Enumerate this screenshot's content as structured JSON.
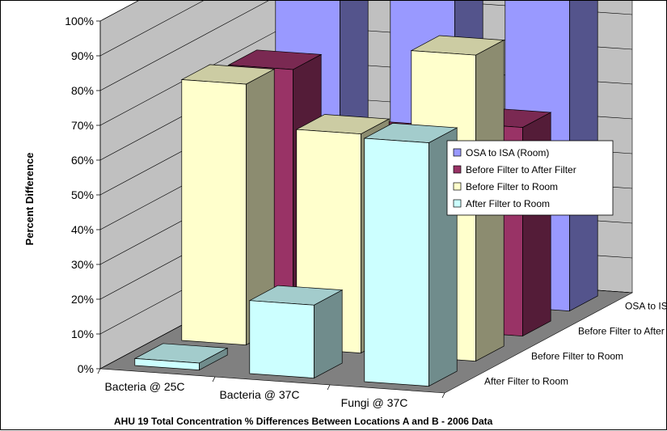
{
  "chart_data": {
    "type": "bar",
    "style": "3d-clustered-columns",
    "title": "AHU 19 Total Concentration % Differences Between Locations A and B - 2006 Data",
    "ylabel": "Percent Difference",
    "ylim": [
      0,
      100
    ],
    "y_ticks": [
      "0%",
      "10%",
      "20%",
      "30%",
      "40%",
      "50%",
      "60%",
      "70%",
      "80%",
      "90%",
      "100%"
    ],
    "categories": [
      "Bacteria @ 25C",
      "Bacteria @ 37C",
      "Fungi @ 37C"
    ],
    "series": [
      {
        "name": "OSA to ISA (Room)",
        "values": [
          95,
          95,
          98
        ],
        "color": "#9999ff"
      },
      {
        "name": "Before Filter to After Filter",
        "values": [
          72,
          54,
          60
        ],
        "color": "#993366"
      },
      {
        "name": "Before Filter to Room",
        "values": [
          75,
          63,
          88
        ],
        "color": "#ffffcc"
      },
      {
        "name": "After Filter to Room",
        "values": [
          2,
          21,
          70
        ],
        "color": "#ccffff"
      }
    ],
    "depth_labels": [
      "OSA to ISA (Room)",
      "Before Filter to After Filter",
      "Before Filter to Room",
      "After Filter to Room"
    ],
    "legend": {
      "placement": "right"
    },
    "grid": true,
    "wall_color": "#c0c0c0",
    "floor_color": "#808080"
  }
}
